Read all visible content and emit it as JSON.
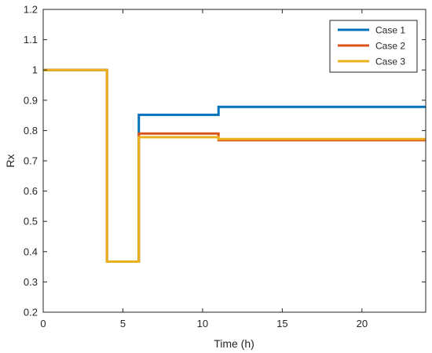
{
  "chart_data": {
    "type": "line",
    "step": true,
    "title": "",
    "xlabel": "Time (h)",
    "ylabel": "Rx",
    "xlim": [
      0,
      24
    ],
    "ylim": [
      0.2,
      1.2
    ],
    "xticks": [
      "0",
      "5",
      "10",
      "15",
      "20"
    ],
    "xtick_values": [
      0,
      5,
      10,
      15,
      20
    ],
    "yticks": [
      "0.2",
      "0.3",
      "0.4",
      "0.5",
      "0.6",
      "0.7",
      "0.8",
      "0.9",
      "1",
      "1.1",
      "1.2"
    ],
    "ytick_values": [
      0.2,
      0.3,
      0.4,
      0.5,
      0.6,
      0.7,
      0.8,
      0.9,
      1.0,
      1.1,
      1.2
    ],
    "grid": false,
    "legend_position": "top-right",
    "series": [
      {
        "name": "Case 1",
        "color": "#0072BD",
        "x": [
          0,
          4,
          6,
          11,
          24
        ],
        "y": [
          1.0,
          0.367,
          0.852,
          0.878,
          0.878
        ]
      },
      {
        "name": "Case 2",
        "color": "#D95319",
        "x": [
          0,
          4,
          6,
          11,
          24
        ],
        "y": [
          1.0,
          0.367,
          0.79,
          0.768,
          0.768
        ]
      },
      {
        "name": "Case 3",
        "color": "#EDB120",
        "x": [
          0,
          4,
          6,
          11,
          24
        ],
        "y": [
          1.0,
          0.367,
          0.778,
          0.772,
          0.772
        ]
      }
    ]
  }
}
